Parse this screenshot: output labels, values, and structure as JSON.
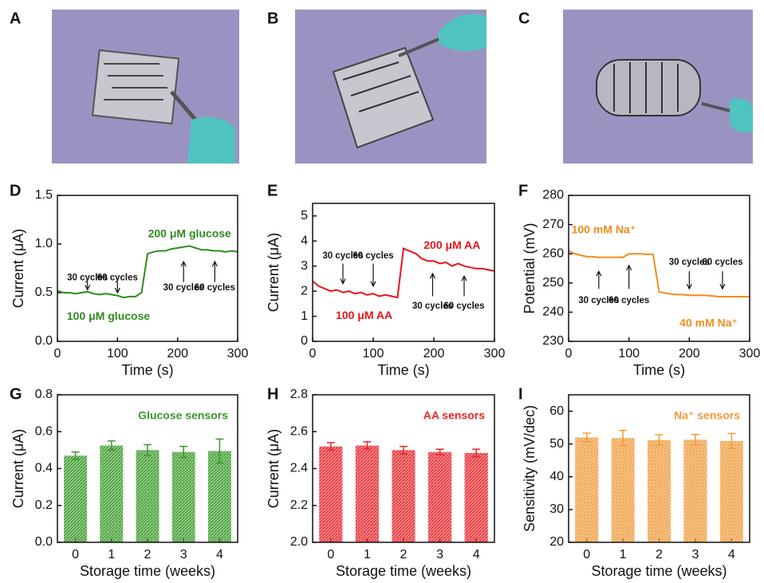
{
  "panels": [
    {
      "label": "A"
    },
    {
      "label": "B"
    },
    {
      "label": "C"
    }
  ],
  "chart_data": [
    {
      "panel": "D",
      "type": "line",
      "xlabel": "Time (s)",
      "ylabel": "Current (μA)",
      "color": "#2e8b1e",
      "x": [
        0,
        10,
        20,
        30,
        40,
        50,
        60,
        70,
        80,
        90,
        100,
        110,
        120,
        130,
        140,
        150,
        160,
        170,
        180,
        190,
        200,
        210,
        220,
        230,
        240,
        250,
        260,
        270,
        280,
        290,
        300
      ],
      "values": [
        0.52,
        0.5,
        0.5,
        0.49,
        0.5,
        0.51,
        0.49,
        0.48,
        0.49,
        0.48,
        0.47,
        0.45,
        0.46,
        0.46,
        0.5,
        0.9,
        0.92,
        0.93,
        0.93,
        0.95,
        0.96,
        0.97,
        0.98,
        0.96,
        0.94,
        0.94,
        0.93,
        0.93,
        0.92,
        0.93,
        0.92
      ],
      "xlim": [
        0,
        300
      ],
      "xticks": [
        0,
        100,
        200,
        300
      ],
      "ylim": [
        0,
        1.5
      ],
      "yticks": [
        {
          "value": 0,
          "label": "0.0"
        },
        0.5,
        {
          "value": 1,
          "label": "1.0"
        },
        1.5
      ],
      "annotations": [
        "30 cycles",
        "60 cycles",
        "30 cycles",
        "60 cycles",
        "200 μM  glucose",
        "100 μM  glucose"
      ]
    },
    {
      "panel": "E",
      "type": "line",
      "xlabel": "Time (s)",
      "ylabel": "Current (μA)",
      "color": "#e8141a",
      "x": [
        0,
        10,
        20,
        30,
        40,
        50,
        60,
        70,
        80,
        90,
        100,
        110,
        120,
        130,
        140,
        150,
        160,
        170,
        180,
        190,
        200,
        210,
        220,
        230,
        240,
        250,
        260,
        270,
        280,
        290,
        300
      ],
      "values": [
        2.4,
        2.2,
        2.1,
        2.0,
        2.05,
        1.95,
        2.0,
        1.9,
        1.95,
        1.85,
        1.9,
        1.8,
        1.85,
        1.8,
        1.75,
        3.7,
        3.6,
        3.5,
        3.3,
        3.2,
        3.2,
        3.1,
        3.15,
        3.0,
        3.1,
        3.0,
        2.95,
        2.9,
        2.9,
        2.85,
        2.8
      ],
      "xlim": [
        0,
        300
      ],
      "xticks": [
        0,
        100,
        200,
        300
      ],
      "ylim": [
        0,
        5.5
      ],
      "yticks": [
        0,
        1,
        2,
        3,
        4,
        5
      ],
      "annotations": [
        "30 cycles",
        "60 cycles",
        "30 cycles",
        "60 cycles",
        "200 μM  AA",
        "100 μM  AA"
      ]
    },
    {
      "panel": "F",
      "type": "line",
      "xlabel": "Time (s)",
      "ylabel": "Potential (mV)",
      "color": "#f28c1e",
      "x": [
        0,
        10,
        20,
        30,
        40,
        50,
        60,
        70,
        80,
        90,
        100,
        110,
        120,
        130,
        140,
        150,
        160,
        170,
        180,
        190,
        200,
        210,
        220,
        230,
        240,
        250,
        260,
        270,
        280,
        290,
        300
      ],
      "values": [
        261,
        260,
        259.5,
        259,
        259,
        258.8,
        258.8,
        258.8,
        258.8,
        258.8,
        260,
        260,
        260,
        259.8,
        259.8,
        247,
        246.5,
        246.2,
        246,
        246,
        245.8,
        245.8,
        245.8,
        245.7,
        245.5,
        245.3,
        245.3,
        245.3,
        245.3,
        245.3,
        245.3
      ],
      "xlim": [
        0,
        300
      ],
      "xticks": [
        0,
        100,
        200,
        300
      ],
      "ylim": [
        230,
        280
      ],
      "yticks": [
        230,
        240,
        250,
        260,
        270,
        280
      ],
      "annotations": [
        "30 cycles",
        "60 cycles",
        "30 cycles",
        "60 cycles",
        "100 mM  Na⁺",
        "40 mM  Na⁺"
      ]
    },
    {
      "panel": "G",
      "type": "bar",
      "xlabel": "Storage time (weeks)",
      "ylabel": "Current (μA)",
      "color": "#3a9a2a",
      "categories": [
        "0",
        "1",
        "2",
        "3",
        "4"
      ],
      "values": [
        0.47,
        0.525,
        0.5,
        0.49,
        0.495
      ],
      "errors": [
        0.02,
        0.025,
        0.03,
        0.03,
        0.065
      ],
      "ylim": [
        0,
        0.8
      ],
      "yticks": [
        {
          "value": 0,
          "label": "0.0"
        },
        0.2,
        0.4,
        0.6,
        0.8
      ],
      "annotation": "Glucose sensors"
    },
    {
      "panel": "H",
      "type": "bar",
      "xlabel": "Storage time (weeks)",
      "ylabel": "Current (μA)",
      "color": "#e8262b",
      "categories": [
        "0",
        "1",
        "2",
        "3",
        "4"
      ],
      "values": [
        2.52,
        2.525,
        2.5,
        2.49,
        2.485
      ],
      "errors": [
        0.02,
        0.02,
        0.02,
        0.015,
        0.02
      ],
      "ylim": [
        2.0,
        2.8
      ],
      "yticks": [
        {
          "value": 2,
          "label": "2.0"
        },
        2.2,
        2.4,
        2.6,
        2.8
      ],
      "annotation": "AA sensors"
    },
    {
      "panel": "I",
      "type": "bar",
      "xlabel": "Storage time (weeks)",
      "ylabel": "Sensitivity (mV/dec)",
      "color": "#f29a3a",
      "categories": [
        "0",
        "1",
        "2",
        "3",
        "4"
      ],
      "values": [
        52,
        51.8,
        51.2,
        51.3,
        50.9
      ],
      "errors": [
        1.3,
        2.3,
        1.6,
        1.6,
        2.3
      ],
      "ylim": [
        20,
        65
      ],
      "yticks": [
        20,
        30,
        40,
        50,
        60
      ],
      "annotation": "Na⁺ sensors"
    }
  ]
}
